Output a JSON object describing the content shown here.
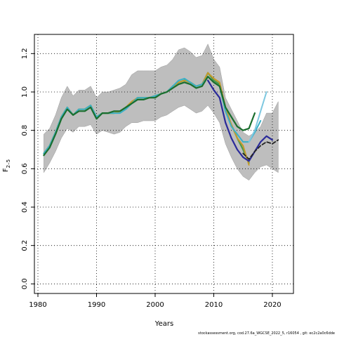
{
  "chart_data": {
    "type": "line",
    "xlabel": "Years",
    "ylabel_main": "F",
    "ylabel_sub": "2–5",
    "xlim": [
      1979.4,
      2023.6
    ],
    "ylim": [
      -0.05,
      1.3
    ],
    "xticks": [
      1980,
      1990,
      2000,
      2010,
      2020
    ],
    "yticks": [
      0.0,
      0.2,
      0.4,
      0.6,
      0.8,
      1.0,
      1.2
    ],
    "ytick_labels": [
      "0.0",
      "0.2",
      "0.4",
      "0.6",
      "0.8",
      "1.0",
      "1.2"
    ],
    "grid": "dotted",
    "band": {
      "color": "#bebebe",
      "x": [
        1981,
        1982,
        1983,
        1984,
        1985,
        1986,
        1987,
        1988,
        1989,
        1990,
        1991,
        1992,
        1993,
        1994,
        1995,
        1996,
        1997,
        1998,
        1999,
        2000,
        2001,
        2002,
        2003,
        2004,
        2005,
        2006,
        2007,
        2008,
        2009,
        2010,
        2011,
        2012,
        2013,
        2014,
        2015,
        2016,
        2017,
        2018,
        2019,
        2020,
        2021
      ],
      "upper": [
        0.78,
        0.81,
        0.88,
        0.97,
        1.03,
        0.98,
        1.01,
        1.01,
        1.03,
        0.97,
        1.0,
        1.0,
        1.01,
        1.02,
        1.04,
        1.09,
        1.11,
        1.11,
        1.11,
        1.11,
        1.13,
        1.14,
        1.17,
        1.22,
        1.23,
        1.21,
        1.18,
        1.19,
        1.25,
        1.17,
        1.13,
        0.97,
        0.91,
        0.85,
        0.79,
        0.77,
        0.79,
        0.82,
        0.89,
        0.89,
        0.95
      ],
      "lower": [
        0.58,
        0.63,
        0.69,
        0.76,
        0.81,
        0.79,
        0.82,
        0.82,
        0.83,
        0.78,
        0.8,
        0.79,
        0.78,
        0.79,
        0.82,
        0.84,
        0.84,
        0.85,
        0.85,
        0.85,
        0.87,
        0.88,
        0.9,
        0.92,
        0.93,
        0.91,
        0.89,
        0.9,
        0.93,
        0.89,
        0.84,
        0.73,
        0.66,
        0.6,
        0.56,
        0.54,
        0.58,
        0.61,
        0.62,
        0.6,
        0.58
      ]
    },
    "series": [
      {
        "color": "#4a9a4a",
        "width": 2.2,
        "dash": "",
        "x": [
          1981,
          1982,
          1983,
          1984,
          1985,
          1986,
          1987,
          1988,
          1989,
          1990,
          1991,
          1992,
          1993,
          1994,
          1995,
          1996,
          1997,
          1998,
          1999,
          2000,
          2001,
          2002,
          2003,
          2004,
          2005,
          2006,
          2007,
          2008,
          2009,
          2010,
          2011,
          2012,
          2013,
          2014,
          2015,
          2016
        ],
        "y": [
          0.68,
          0.72,
          0.79,
          0.87,
          0.92,
          0.88,
          0.91,
          0.91,
          0.93,
          0.87,
          0.89,
          0.89,
          0.89,
          0.9,
          0.92,
          0.94,
          0.97,
          0.97,
          0.97,
          0.98,
          0.99,
          1.0,
          1.03,
          1.05,
          1.06,
          1.05,
          1.03,
          1.04,
          1.1,
          1.06,
          1.04,
          0.9,
          0.83,
          0.76,
          0.7,
          0.63
        ]
      },
      {
        "color": "#c49a2a",
        "width": 2.0,
        "dash": "",
        "x": [
          1981,
          1982,
          1983,
          1984,
          1985,
          1986,
          1987,
          1988,
          1989,
          1990,
          1991,
          1992,
          1993,
          1994,
          1995,
          1996,
          1997,
          1998,
          1999,
          2000,
          2001,
          2002,
          2003,
          2004,
          2005,
          2006,
          2007,
          2008,
          2009,
          2010,
          2011,
          2012,
          2013,
          2014,
          2015,
          2016
        ],
        "y": [
          0.68,
          0.72,
          0.79,
          0.87,
          0.92,
          0.88,
          0.91,
          0.91,
          0.93,
          0.87,
          0.89,
          0.89,
          0.89,
          0.9,
          0.92,
          0.95,
          0.97,
          0.97,
          0.97,
          0.98,
          0.99,
          1.0,
          1.03,
          1.05,
          1.06,
          1.05,
          1.03,
          1.04,
          1.1,
          1.07,
          1.05,
          0.92,
          0.83,
          0.76,
          0.72,
          0.62
        ]
      },
      {
        "color": "#3ab0c8",
        "width": 2.0,
        "dash": "",
        "x": [
          1981,
          1982,
          1983,
          1984,
          1985,
          1986,
          1987,
          1988,
          1989,
          1990,
          1991,
          1992,
          1993,
          1994,
          1995,
          1996,
          1997,
          1998,
          1999,
          2000,
          2001,
          2002,
          2003,
          2004,
          2005,
          2006,
          2007,
          2008,
          2009,
          2010,
          2011,
          2012,
          2013,
          2014,
          2015,
          2016,
          2017,
          2018
        ],
        "y": [
          0.68,
          0.72,
          0.79,
          0.87,
          0.92,
          0.88,
          0.91,
          0.91,
          0.93,
          0.87,
          0.89,
          0.89,
          0.89,
          0.89,
          0.91,
          0.94,
          0.97,
          0.97,
          0.97,
          0.98,
          0.99,
          1.0,
          1.03,
          1.06,
          1.07,
          1.05,
          1.03,
          1.04,
          1.08,
          1.05,
          1.03,
          0.9,
          0.82,
          0.78,
          0.74,
          0.74,
          0.79,
          0.85
        ]
      },
      {
        "color": "#7ec8e0",
        "width": 2.0,
        "dash": "",
        "x": [
          2016,
          2017,
          2018,
          2019
        ],
        "y": [
          0.74,
          0.8,
          0.9,
          1.0
        ]
      },
      {
        "color": "#1a6e2e",
        "width": 2.2,
        "dash": "",
        "x": [
          1981,
          1982,
          1983,
          1984,
          1985,
          1986,
          1987,
          1988,
          1989,
          1990,
          1991,
          1992,
          1993,
          1994,
          1995,
          1996,
          1997,
          1998,
          1999,
          2000,
          2001,
          2002,
          2003,
          2004,
          2005,
          2006,
          2007,
          2008,
          2009,
          2010,
          2011,
          2012,
          2013,
          2014,
          2015,
          2016,
          2017
        ],
        "y": [
          0.67,
          0.71,
          0.78,
          0.86,
          0.91,
          0.88,
          0.9,
          0.9,
          0.92,
          0.86,
          0.89,
          0.89,
          0.9,
          0.9,
          0.92,
          0.94,
          0.96,
          0.96,
          0.97,
          0.97,
          0.99,
          1.0,
          1.02,
          1.04,
          1.05,
          1.04,
          1.02,
          1.03,
          1.08,
          1.05,
          1.03,
          0.92,
          0.87,
          0.82,
          0.8,
          0.81,
          0.89
        ]
      },
      {
        "color": "#2a2a9a",
        "width": 2.2,
        "dash": "",
        "x": [
          2009,
          2010,
          2011,
          2012,
          2013,
          2014,
          2015,
          2016,
          2017,
          2018,
          2019,
          2020
        ],
        "y": [
          1.06,
          1.01,
          0.97,
          0.84,
          0.76,
          0.7,
          0.66,
          0.64,
          0.69,
          0.74,
          0.77,
          0.75
        ]
      },
      {
        "color": "#222222",
        "width": 1.8,
        "dash": "5,3",
        "x": [
          2015,
          2016,
          2017,
          2018,
          2019,
          2020,
          2021
        ],
        "y": [
          0.68,
          0.65,
          0.69,
          0.72,
          0.74,
          0.73,
          0.75
        ]
      }
    ]
  },
  "footer": "stockassessment.org,  cod.27.6a_WGCSE_2022_5,  r16054 ,  git:  ec2c2a0c6dde"
}
